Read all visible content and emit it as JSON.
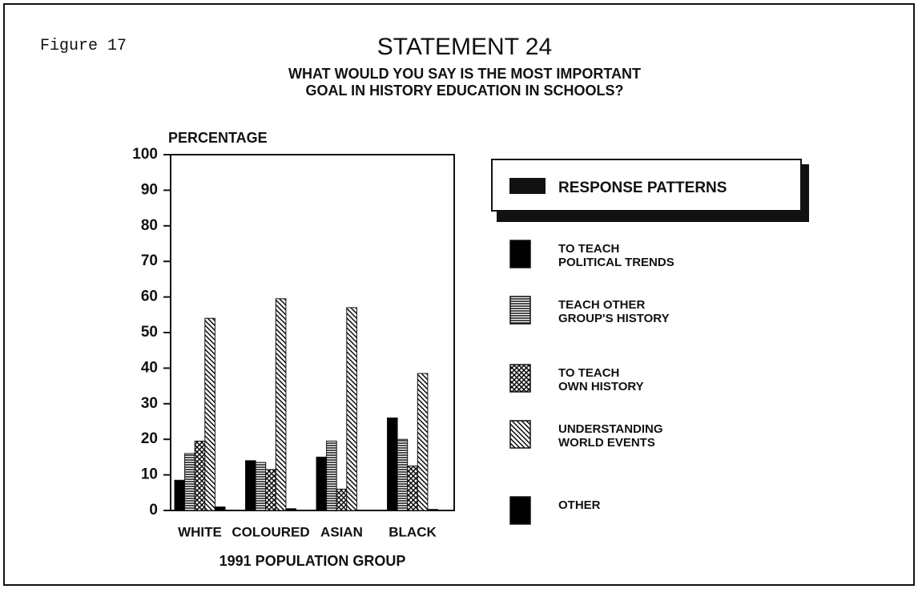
{
  "chart_data": {
    "type": "bar",
    "figure_label": "Figure 17",
    "title": "STATEMENT 24",
    "subtitle": "WHAT WOULD YOU SAY IS THE MOST IMPORTANT\nGOAL IN HISTORY EDUCATION IN SCHOOLS?",
    "y_label": "PERCENTAGE",
    "x_label": "1991 POPULATION GROUP",
    "legend_title": "RESPONSE PATTERNS",
    "categories": [
      "WHITE",
      "COLOURED",
      "ASIAN",
      "BLACK"
    ],
    "series": [
      {
        "name": "TO TEACH\n POLITICAL TRENDS",
        "color": "#000000",
        "pattern": "solid",
        "values": [
          8.5,
          14,
          15,
          26
        ]
      },
      {
        "name": "TEACH OTHER\nGROUP'S HISTORY",
        "color": "#000000",
        "pattern": "horizontal",
        "values": [
          16,
          13.5,
          19.5,
          20
        ]
      },
      {
        "name": "TO TEACH\nOWN HISTORY",
        "color": "#000000",
        "pattern": "crosshatch",
        "values": [
          19.5,
          11.5,
          6,
          12.5
        ]
      },
      {
        "name": "UNDERSTANDING\nWORLD EVENTS",
        "color": "#000000",
        "pattern": "diagonal",
        "values": [
          54,
          59.5,
          57,
          38.5
        ]
      },
      {
        "name": "OTHER",
        "color": "#000000",
        "pattern": "solid",
        "values": [
          1,
          0.5,
          0,
          0.3
        ]
      }
    ],
    "ylim": [
      0,
      100
    ],
    "yticks": [
      0,
      10,
      20,
      30,
      40,
      50,
      60,
      70,
      80,
      90,
      100
    ]
  }
}
